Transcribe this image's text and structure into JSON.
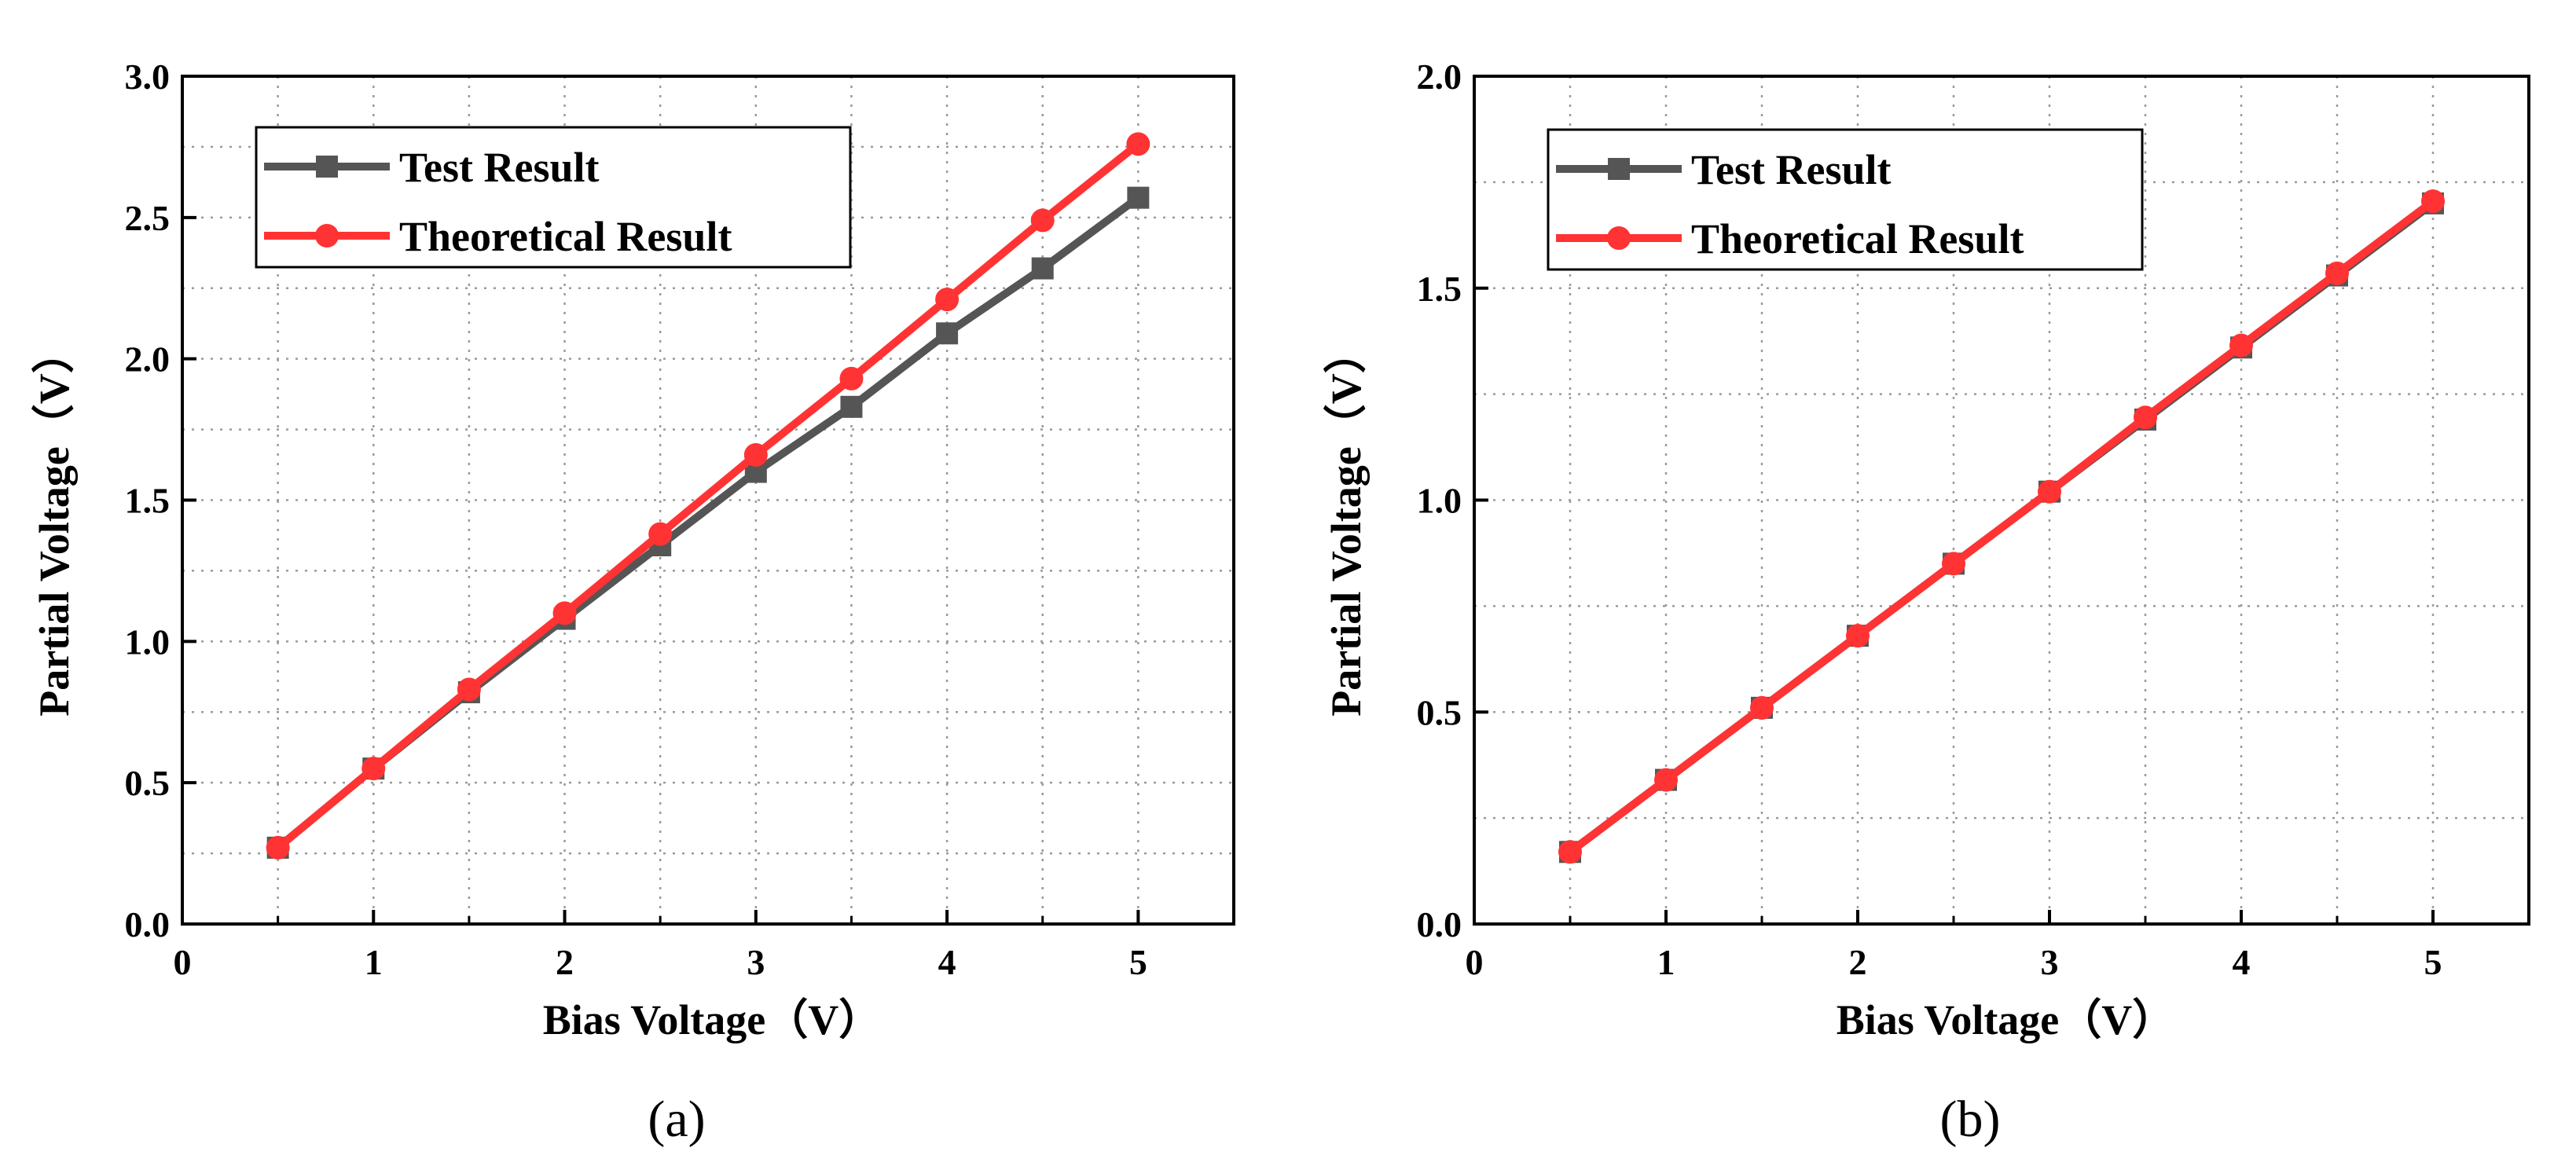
{
  "chart_data": [
    {
      "type": "line",
      "caption": "(a)",
      "xlabel": "Bias Voltage（V）",
      "ylabel": "Partial Voltage（V）",
      "xlim": [
        0,
        5.5
      ],
      "ylim": [
        0,
        3.0
      ],
      "xticks": [
        0,
        1,
        2,
        3,
        4,
        5
      ],
      "yticks": [
        0.0,
        0.5,
        1.0,
        1.5,
        2.0,
        2.5,
        3.0
      ],
      "ytick_labels": [
        "0.0",
        "0.5",
        "1.0",
        "1.5",
        "2.0",
        "2.5",
        "3.0"
      ],
      "grid": true,
      "legend_position": "top-left",
      "x": [
        0.5,
        1,
        1.5,
        2,
        2.5,
        3,
        3.5,
        4,
        4.5,
        5
      ],
      "series": [
        {
          "name": "Test Result",
          "color": "#555555",
          "marker": "square",
          "values": [
            0.27,
            0.55,
            0.82,
            1.08,
            1.34,
            1.6,
            1.83,
            2.09,
            2.32,
            2.57
          ]
        },
        {
          "name": "Theoretical Result",
          "color": "#ff3333",
          "marker": "circle",
          "values": [
            0.27,
            0.55,
            0.83,
            1.1,
            1.38,
            1.66,
            1.93,
            2.21,
            2.49,
            2.76
          ]
        }
      ]
    },
    {
      "type": "line",
      "caption": "(b)",
      "xlabel": "Bias Voltage（V）",
      "ylabel": "Partial Voltage（V）",
      "xlim": [
        0,
        5.5
      ],
      "ylim": [
        0,
        2.0
      ],
      "xticks": [
        0,
        1,
        2,
        3,
        4,
        5
      ],
      "yticks": [
        0.0,
        0.5,
        1.0,
        1.5,
        2.0
      ],
      "ytick_labels": [
        "0.0",
        "0.5",
        "1.0",
        "1.5",
        "2.0"
      ],
      "grid": true,
      "legend_position": "top-left",
      "x": [
        0.5,
        1,
        1.5,
        2,
        2.5,
        3,
        3.5,
        4,
        4.5,
        5
      ],
      "series": [
        {
          "name": "Test Result",
          "color": "#555555",
          "marker": "square",
          "values": [
            0.17,
            0.34,
            0.51,
            0.68,
            0.85,
            1.02,
            1.19,
            1.36,
            1.53,
            1.7
          ]
        },
        {
          "name": "Theoretical Result",
          "color": "#ff3333",
          "marker": "circle",
          "values": [
            0.17,
            0.34,
            0.51,
            0.68,
            0.85,
            1.02,
            1.195,
            1.365,
            1.535,
            1.705
          ]
        }
      ]
    }
  ]
}
